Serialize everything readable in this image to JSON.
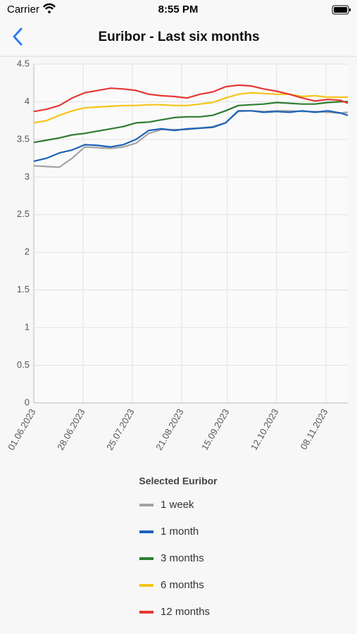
{
  "status_bar": {
    "carrier": "Carrier",
    "time": "8:55 PM"
  },
  "nav_bar": {
    "title": "Euribor - Last six months"
  },
  "chart_data": {
    "type": "line",
    "x": [
      "01.06.2023",
      "08.06.2023",
      "15.06.2023",
      "22.06.2023",
      "29.06.2023",
      "06.07.2023",
      "13.07.2023",
      "20.07.2023",
      "27.07.2023",
      "03.08.2023",
      "10.08.2023",
      "17.08.2023",
      "24.08.2023",
      "31.08.2023",
      "07.09.2023",
      "14.09.2023",
      "21.09.2023",
      "28.09.2023",
      "05.10.2023",
      "12.10.2023",
      "19.10.2023",
      "26.10.2023",
      "02.11.2023",
      "09.11.2023",
      "16.11.2023",
      "20.11.2023"
    ],
    "xlim": [
      "01.06.2023",
      "20.11.2023"
    ],
    "xticks": [
      "01.06.2023",
      "28.06.2023",
      "25.07.2023",
      "21.08.2023",
      "15.09.2023",
      "12.10.2023",
      "08.11.2023"
    ],
    "ylim": [
      0,
      4.5
    ],
    "yticks": [
      0,
      0.5,
      1,
      1.5,
      2,
      2.5,
      3,
      3.5,
      4,
      4.5
    ],
    "grid": true,
    "legend_title": "Selected Euribor",
    "series": [
      {
        "name": "1 week",
        "color": "#a3a3a3",
        "values": [
          3.15,
          3.14,
          3.13,
          3.25,
          3.4,
          3.39,
          3.38,
          3.4,
          3.45,
          3.58,
          3.63,
          3.63,
          3.63,
          3.65,
          3.67,
          3.72,
          3.87,
          3.88,
          3.87,
          3.88,
          3.88,
          3.87,
          3.87,
          3.86,
          3.85,
          3.86
        ]
      },
      {
        "name": "1 month",
        "color": "#1c62b9",
        "values": [
          3.21,
          3.25,
          3.32,
          3.36,
          3.43,
          3.42,
          3.4,
          3.43,
          3.5,
          3.62,
          3.64,
          3.62,
          3.64,
          3.65,
          3.66,
          3.72,
          3.88,
          3.88,
          3.86,
          3.87,
          3.86,
          3.88,
          3.86,
          3.88,
          3.85,
          3.82
        ]
      },
      {
        "name": "3 months",
        "color": "#2e7d32",
        "values": [
          3.46,
          3.49,
          3.52,
          3.56,
          3.58,
          3.61,
          3.64,
          3.67,
          3.72,
          3.73,
          3.76,
          3.79,
          3.8,
          3.8,
          3.82,
          3.88,
          3.95,
          3.96,
          3.97,
          3.99,
          3.98,
          3.97,
          3.97,
          3.99,
          4.0,
          4.0
        ]
      },
      {
        "name": "6 months",
        "color": "#f5c518",
        "values": [
          3.72,
          3.75,
          3.82,
          3.88,
          3.92,
          3.93,
          3.94,
          3.95,
          3.95,
          3.96,
          3.96,
          3.95,
          3.95,
          3.97,
          3.99,
          4.05,
          4.1,
          4.12,
          4.11,
          4.1,
          4.1,
          4.07,
          4.08,
          4.06,
          4.06,
          4.06
        ]
      },
      {
        "name": "12 months",
        "color": "#e53935",
        "values": [
          3.87,
          3.9,
          3.95,
          4.05,
          4.12,
          4.15,
          4.18,
          4.17,
          4.15,
          4.1,
          4.08,
          4.07,
          4.05,
          4.1,
          4.13,
          4.2,
          4.22,
          4.21,
          4.17,
          4.14,
          4.1,
          4.05,
          4.01,
          4.03,
          4.02,
          3.98
        ]
      }
    ]
  }
}
